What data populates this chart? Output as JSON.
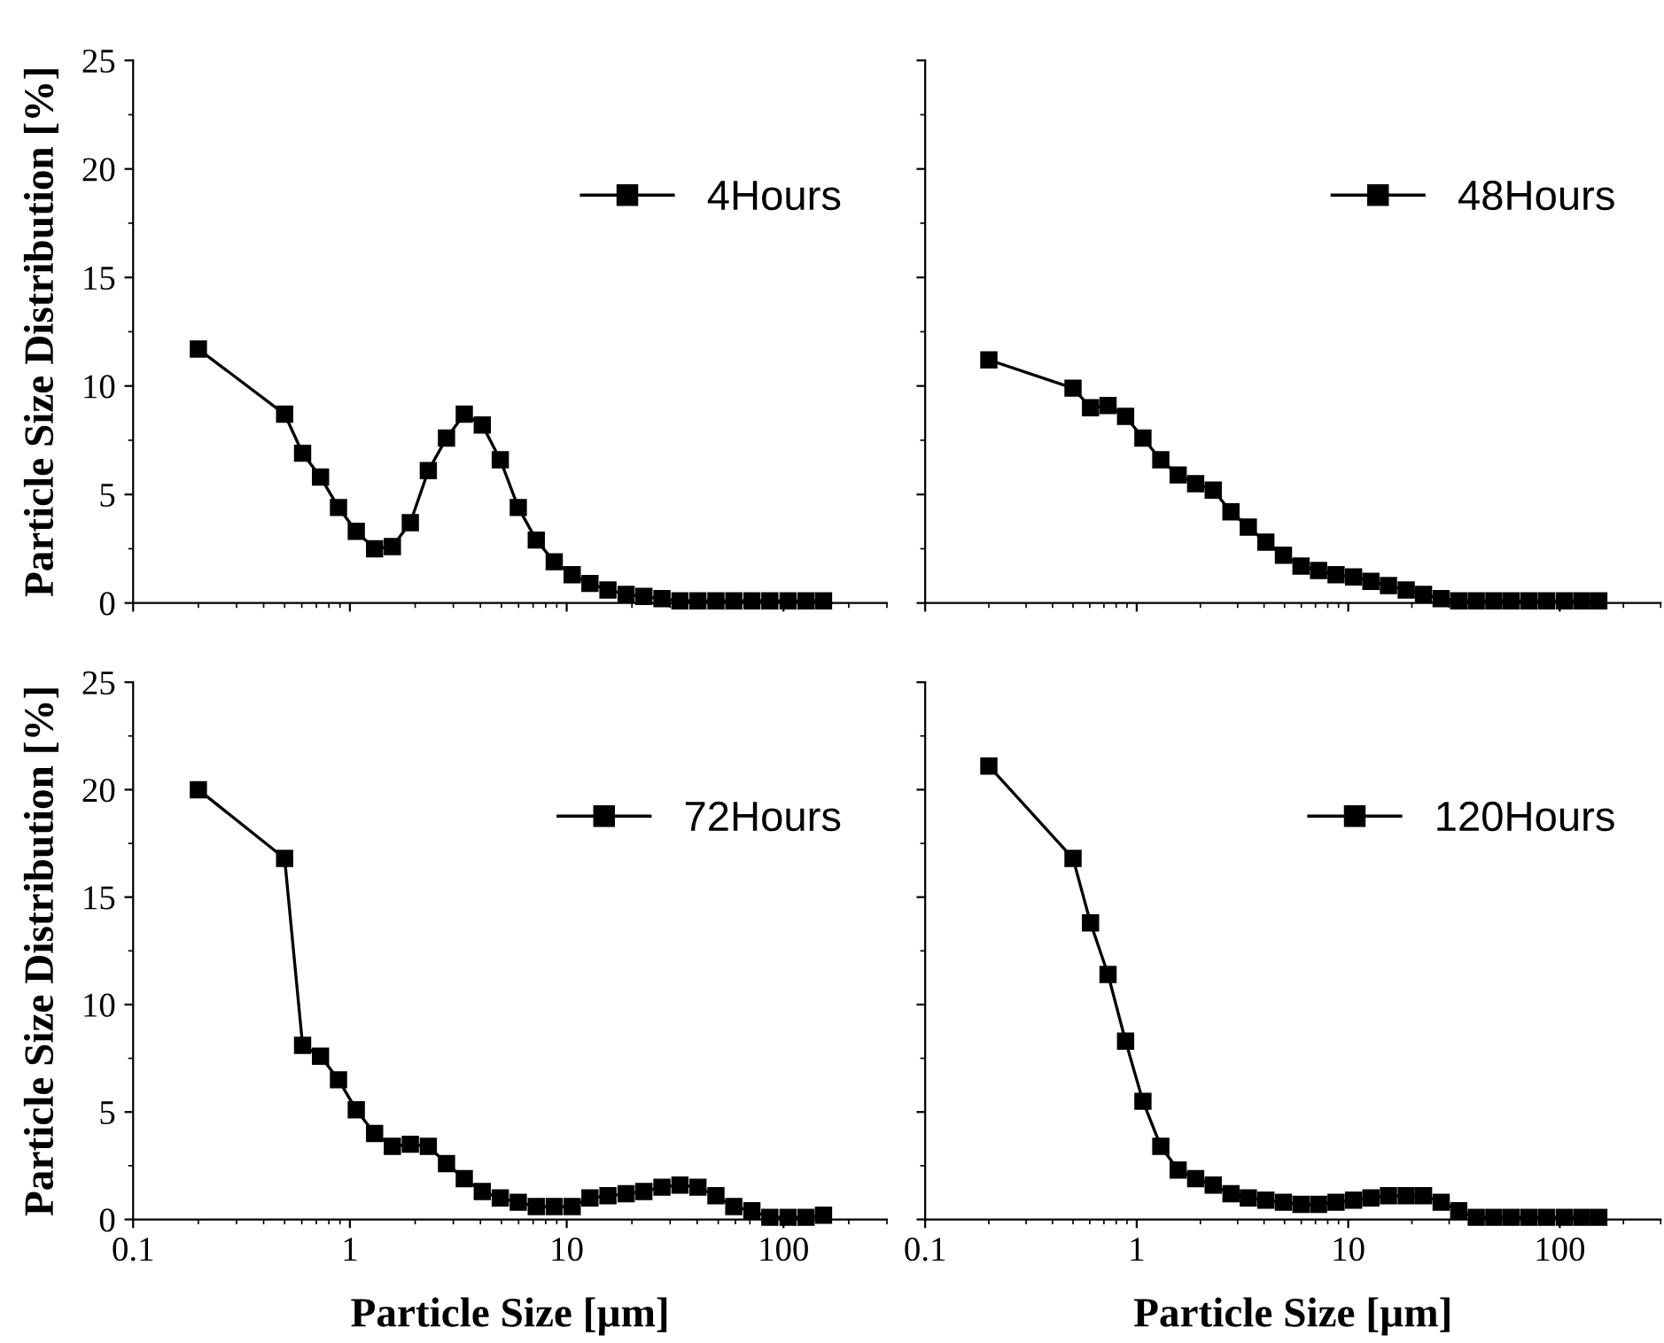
{
  "chart_data": [
    {
      "type": "line",
      "ylabel": "Particle Size Distribution [%]",
      "x": [
        0.2,
        0.5,
        0.605,
        0.732,
        0.886,
        1.07,
        1.3,
        1.57,
        1.9,
        2.3,
        2.79,
        3.37,
        4.08,
        4.94,
        5.98,
        7.24,
        8.76,
        10.6,
        12.8,
        15.5,
        18.8,
        22.7,
        27.5,
        33.3,
        40.3,
        48.8,
        59.0,
        71.5,
        86.5,
        105,
        127,
        153
      ],
      "log": "x",
      "xlim": [
        0.1,
        300
      ],
      "xticks": [
        0.1,
        1,
        10,
        100
      ],
      "ylim": [
        0,
        25
      ],
      "yticks": [
        0,
        5,
        10,
        15,
        20,
        25
      ],
      "tick_labels": "y",
      "legend": "top right",
      "marker": "square",
      "line_style": "solid",
      "grid": false,
      "series": [
        {
          "name": "4Hours",
          "color": "#000000",
          "values": [
            11.7,
            8.7,
            6.9,
            5.8,
            4.4,
            3.3,
            2.5,
            2.6,
            3.7,
            6.1,
            7.6,
            8.7,
            8.2,
            6.6,
            4.4,
            2.9,
            1.9,
            1.3,
            0.9,
            0.6,
            0.4,
            0.3,
            0.2,
            0.1,
            0.1,
            0.1,
            0.1,
            0.1,
            0.1,
            0.1,
            0.1,
            0.1
          ]
        }
      ]
    },
    {
      "type": "line",
      "x": [
        0.2,
        0.5,
        0.605,
        0.732,
        0.886,
        1.07,
        1.3,
        1.57,
        1.9,
        2.3,
        2.79,
        3.37,
        4.08,
        4.94,
        5.98,
        7.24,
        8.76,
        10.6,
        12.8,
        15.5,
        18.8,
        22.7,
        27.5,
        33.3,
        40.3,
        48.8,
        59.0,
        71.5,
        86.5,
        105,
        127,
        153
      ],
      "log": "x",
      "xlim": [
        0.1,
        300
      ],
      "xticks": [
        0.1,
        1,
        10,
        100
      ],
      "ylim": [
        0,
        25
      ],
      "yticks": [
        0,
        5,
        10,
        15,
        20,
        25
      ],
      "tick_labels": false,
      "legend": "top right",
      "marker": "square",
      "line_style": "solid",
      "grid": false,
      "series": [
        {
          "name": "48Hours",
          "color": "#000000",
          "values": [
            11.2,
            9.9,
            9.0,
            9.1,
            8.6,
            7.6,
            6.6,
            5.9,
            5.5,
            5.2,
            4.2,
            3.5,
            2.8,
            2.2,
            1.7,
            1.5,
            1.3,
            1.2,
            1.0,
            0.8,
            0.6,
            0.4,
            0.2,
            0.1,
            0.1,
            0.1,
            0.1,
            0.1,
            0.1,
            0.1,
            0.1,
            0.1
          ]
        }
      ]
    },
    {
      "type": "line",
      "xlabel": "Particle Size [µm]",
      "ylabel": "Particle Size Distribution [%]",
      "x": [
        0.2,
        0.5,
        0.605,
        0.732,
        0.886,
        1.07,
        1.3,
        1.57,
        1.9,
        2.3,
        2.79,
        3.37,
        4.08,
        4.94,
        5.98,
        7.24,
        8.76,
        10.6,
        12.8,
        15.5,
        18.8,
        22.7,
        27.5,
        33.3,
        40.3,
        48.8,
        59.0,
        71.5,
        86.5,
        105,
        127,
        153
      ],
      "log": "x",
      "xlim": [
        0.1,
        300
      ],
      "xticks": [
        0.1,
        1,
        10,
        100
      ],
      "ylim": [
        0,
        25
      ],
      "yticks": [
        0,
        5,
        10,
        15,
        20,
        25
      ],
      "legend": "top right",
      "marker": "square",
      "line_style": "solid",
      "grid": false,
      "series": [
        {
          "name": "72Hours",
          "color": "#000000",
          "values": [
            20.0,
            16.8,
            8.1,
            7.6,
            6.5,
            5.1,
            4.0,
            3.4,
            3.5,
            3.4,
            2.6,
            1.9,
            1.3,
            1.0,
            0.8,
            0.6,
            0.6,
            0.6,
            1.0,
            1.1,
            1.2,
            1.3,
            1.5,
            1.6,
            1.5,
            1.1,
            0.6,
            0.4,
            0.1,
            0.1,
            0.1,
            0.2
          ]
        }
      ]
    },
    {
      "type": "line",
      "xlabel": "Particle Size [µm]",
      "x": [
        0.2,
        0.5,
        0.605,
        0.732,
        0.886,
        1.07,
        1.3,
        1.57,
        1.9,
        2.3,
        2.79,
        3.37,
        4.08,
        4.94,
        5.98,
        7.24,
        8.76,
        10.6,
        12.8,
        15.5,
        18.8,
        22.7,
        27.5,
        33.3,
        40.3,
        48.8,
        59.0,
        71.5,
        86.5,
        105,
        127,
        153
      ],
      "log": "x",
      "xlim": [
        0.1,
        300
      ],
      "xticks": [
        0.1,
        1,
        10,
        100
      ],
      "ylim": [
        0,
        25
      ],
      "yticks": [
        0,
        5,
        10,
        15,
        20,
        25
      ],
      "tick_labels": "x",
      "legend": "top right",
      "marker": "square",
      "line_style": "solid",
      "grid": false,
      "series": [
        {
          "name": "120Hours",
          "color": "#000000",
          "values": [
            21.1,
            16.8,
            13.8,
            11.4,
            8.3,
            5.5,
            3.4,
            2.3,
            1.9,
            1.6,
            1.2,
            1.0,
            0.9,
            0.8,
            0.7,
            0.7,
            0.8,
            0.9,
            1.0,
            1.1,
            1.1,
            1.1,
            0.8,
            0.4,
            0.1,
            0.1,
            0.1,
            0.1,
            0.1,
            0.1,
            0.1,
            0.1
          ]
        }
      ]
    }
  ]
}
